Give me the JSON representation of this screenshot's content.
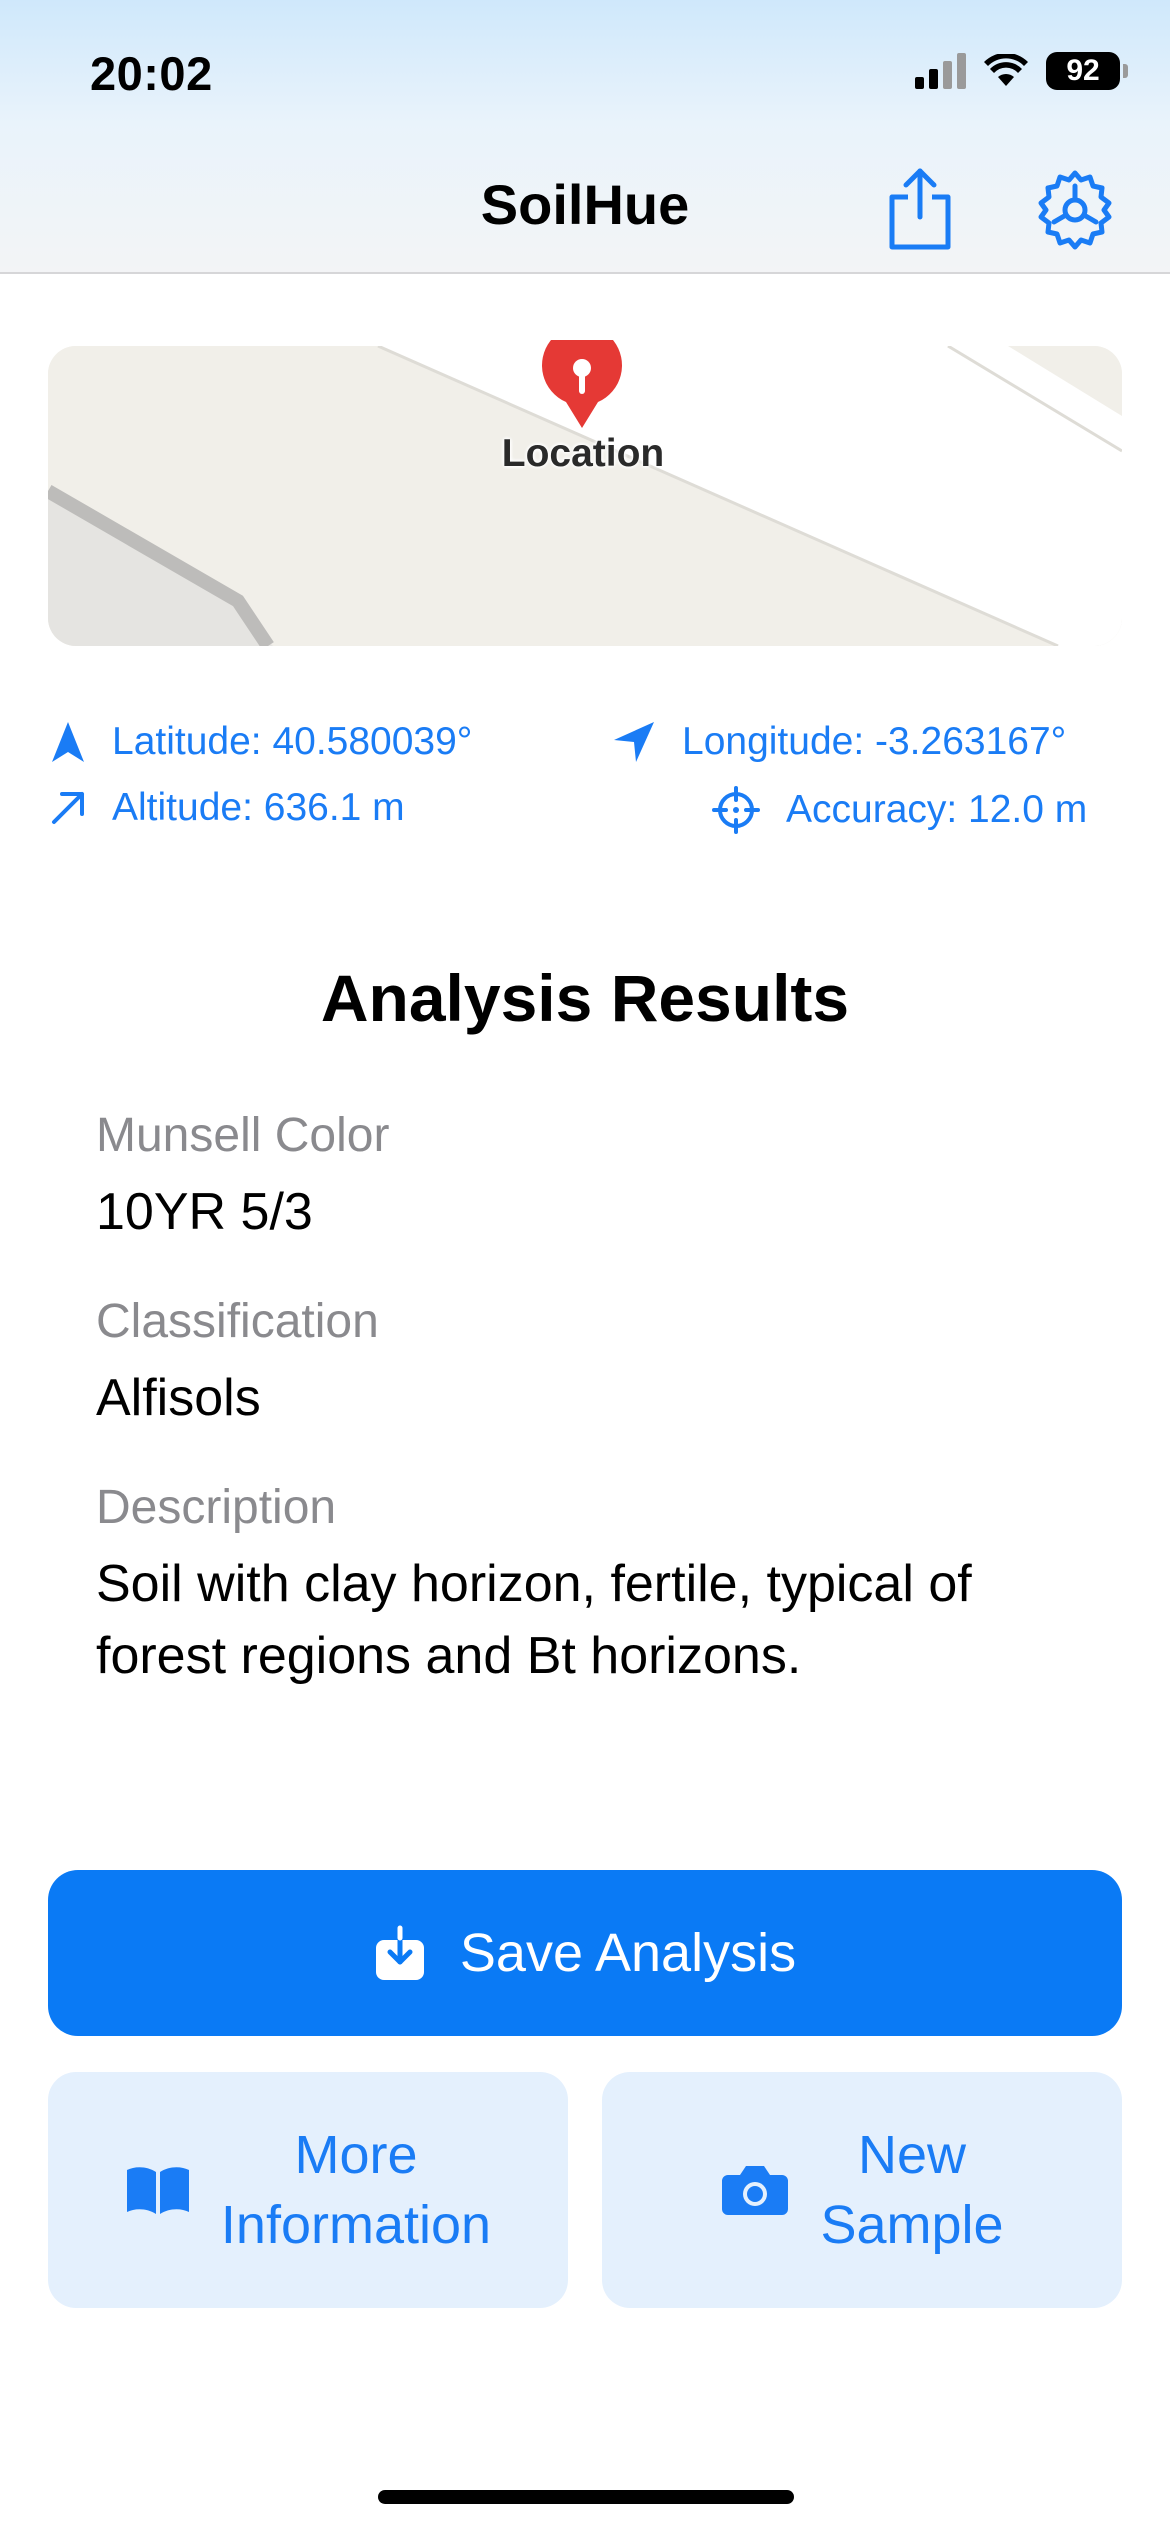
{
  "status_bar": {
    "time": "20:02",
    "battery": "92"
  },
  "nav": {
    "title": "SoilHue"
  },
  "map": {
    "pin_label": "Location"
  },
  "location": {
    "latitude": "Latitude: 40.580039°",
    "longitude": "Longitude: -3.263167°",
    "altitude": "Altitude: 636.1 m",
    "accuracy": "Accuracy: 12.0 m"
  },
  "results": {
    "title": "Analysis Results",
    "munsell_label": "Munsell Color",
    "munsell_value": "10YR 5/3",
    "classification_label": "Classification",
    "classification_value": "Alfisols",
    "description_label": "Description",
    "description_value": "Soil with clay horizon, fertile, typical of forest regions and Bt horizons."
  },
  "actions": {
    "save": "Save Analysis",
    "more_line1": "More",
    "more_line2": "Information",
    "new_line1": "New",
    "new_line2": "Sample"
  },
  "colors": {
    "accent": "#0a7af5",
    "secondary_bg": "#e4f0fd",
    "pin": "#e53935"
  }
}
